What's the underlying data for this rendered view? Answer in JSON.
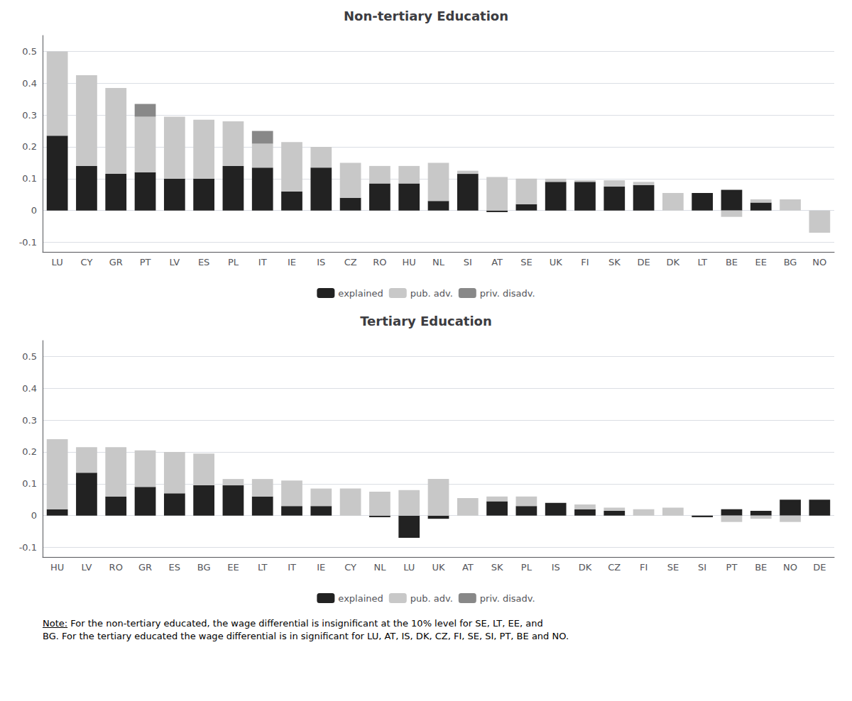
{
  "chart_data": [
    {
      "type": "bar",
      "title": "Non-tertiary Education",
      "categories": [
        "LU",
        "CY",
        "GR",
        "PT",
        "LV",
        "ES",
        "PL",
        "IT",
        "IE",
        "IS",
        "CZ",
        "RO",
        "HU",
        "NL",
        "SI",
        "AT",
        "SE",
        "UK",
        "FI",
        "SK",
        "DE",
        "DK",
        "LT",
        "BE",
        "EE",
        "BG",
        "NO"
      ],
      "series": [
        {
          "name": "explained",
          "color": "#222222",
          "values": [
            0.235,
            0.14,
            0.115,
            0.12,
            0.1,
            0.1,
            0.14,
            0.135,
            0.06,
            0.135,
            0.04,
            0.085,
            0.085,
            0.03,
            0.115,
            -0.005,
            0.02,
            0.09,
            0.09,
            0.075,
            0.08,
            0.0,
            0.055,
            0.065,
            0.025,
            0.0,
            0.0
          ]
        },
        {
          "name": "pub. adv.",
          "color": "#c8c8c8",
          "values": [
            0.265,
            0.285,
            0.27,
            0.175,
            0.195,
            0.185,
            0.14,
            0.075,
            0.155,
            0.065,
            0.11,
            0.055,
            0.055,
            0.12,
            0.01,
            0.105,
            0.08,
            0.01,
            0.005,
            0.02,
            0.01,
            0.055,
            0.0,
            -0.02,
            0.01,
            0.035,
            -0.07
          ]
        },
        {
          "name": "priv. disadv.",
          "color": "#888888",
          "values": [
            0.0,
            0.0,
            0.0,
            0.04,
            0.0,
            0.0,
            0.0,
            0.04,
            0.0,
            0.0,
            0.0,
            0.0,
            0.0,
            0.0,
            0.0,
            0.0,
            0.0,
            0.0,
            0.0,
            0.0,
            0.0,
            0.0,
            0.0,
            0.0,
            0.0,
            0.0,
            0.0
          ]
        }
      ],
      "stacked": true,
      "ylim": [
        -0.13,
        0.55
      ],
      "yticks": [
        -0.1,
        0,
        0.1,
        0.2,
        0.3,
        0.4,
        0.5
      ],
      "grid": true,
      "legend": "bottom"
    },
    {
      "type": "bar",
      "title": "Tertiary Education",
      "categories": [
        "HU",
        "LV",
        "RO",
        "GR",
        "ES",
        "BG",
        "EE",
        "LT",
        "IT",
        "IE",
        "CY",
        "NL",
        "LU",
        "UK",
        "AT",
        "SK",
        "PL",
        "IS",
        "DK",
        "CZ",
        "FI",
        "SE",
        "SI",
        "PT",
        "BE",
        "NO",
        "DE"
      ],
      "series": [
        {
          "name": "explained",
          "color": "#222222",
          "values": [
            0.02,
            0.135,
            0.06,
            0.09,
            0.07,
            0.095,
            0.095,
            0.06,
            0.03,
            0.03,
            0.0,
            -0.005,
            -0.07,
            -0.01,
            0.0,
            0.045,
            0.03,
            0.04,
            0.02,
            0.015,
            0.0,
            0.0,
            -0.005,
            0.02,
            0.015,
            0.05,
            0.05
          ]
        },
        {
          "name": "pub. adv.",
          "color": "#c8c8c8",
          "values": [
            0.22,
            0.08,
            0.155,
            0.115,
            0.13,
            0.1,
            0.02,
            0.055,
            0.08,
            0.055,
            0.085,
            0.075,
            0.08,
            0.115,
            0.055,
            0.015,
            0.03,
            0.0,
            0.015,
            0.01,
            0.02,
            0.025,
            0.0,
            -0.02,
            -0.01,
            -0.02,
            0.0
          ]
        },
        {
          "name": "priv. disadv.",
          "color": "#888888",
          "values": [
            0.0,
            0.0,
            0.0,
            0.0,
            0.0,
            0.0,
            0.0,
            0.0,
            0.0,
            0.0,
            0.0,
            0.0,
            0.0,
            0.0,
            0.0,
            0.0,
            0.0,
            0.0,
            0.0,
            0.0,
            0.0,
            0.0,
            0.0,
            0.0,
            0.0,
            0.0,
            0.0
          ]
        }
      ],
      "stacked": true,
      "ylim": [
        -0.13,
        0.55
      ],
      "yticks": [
        -0.1,
        0,
        0.1,
        0.2,
        0.3,
        0.4,
        0.5
      ],
      "grid": true,
      "legend": "bottom",
      "annotations": [
        "Note: For the non-tertiary educated, the wage differential is insignificant at the 10% level for SE, LT, EE, and",
        "BG. For the tertiary educated the wage differential is in significant for LU, AT, IS, DK, CZ, FI, SE, SI, PT, BE and NO."
      ]
    }
  ]
}
